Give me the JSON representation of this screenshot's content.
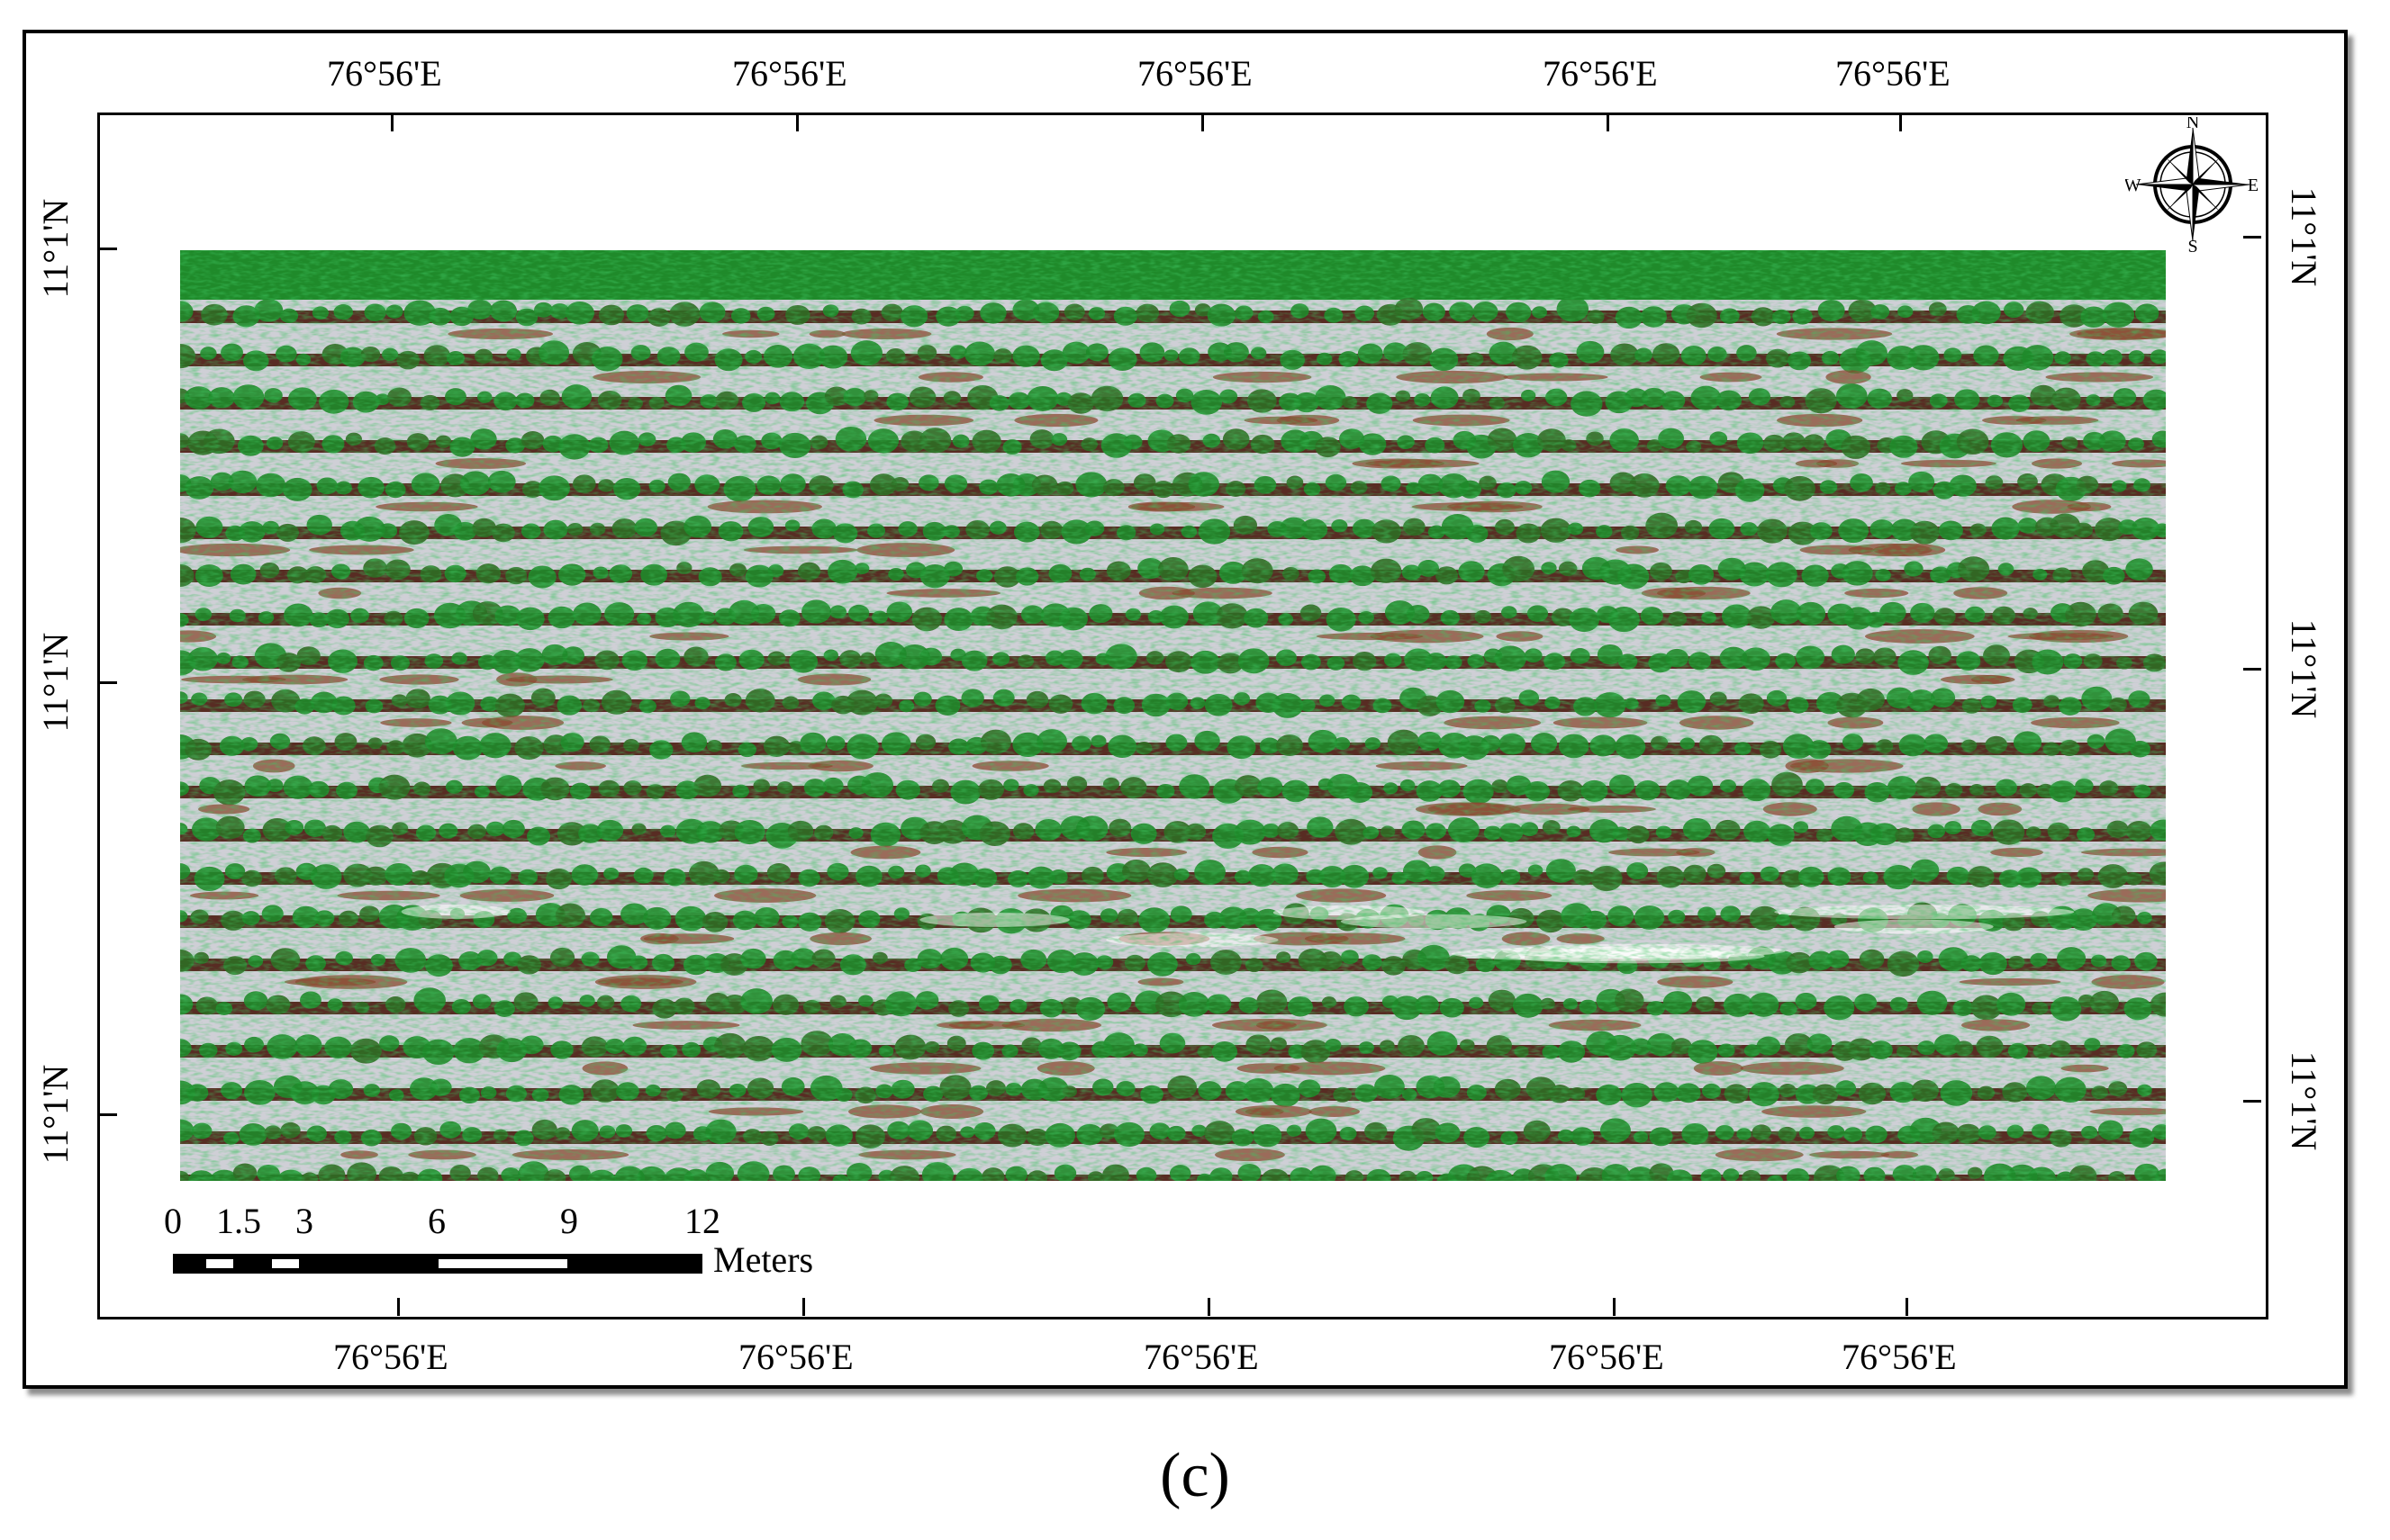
{
  "map": {
    "top_labels": [
      "76°56'E",
      "76°56'E",
      "76°56'E",
      "76°56'E",
      "76°56'E"
    ],
    "bottom_labels": [
      "76°56'E",
      "76°56'E",
      "76°56'E",
      "76°56'E",
      "76°56'E"
    ],
    "left_labels": [
      "11°1'N",
      "11°1'N",
      "11°1'N"
    ],
    "right_labels": [
      "11°1'N",
      "11°1'N",
      "11°1'N"
    ],
    "north_arrow": {
      "icon": "compass-rose-icon",
      "n": "N",
      "s": "S",
      "e": "E",
      "w": "W"
    },
    "scale_bar": {
      "ticks": [
        "0",
        "1.5",
        "3",
        "6",
        "9",
        "12"
      ],
      "unit": "Meters"
    },
    "imagery": {
      "description_icon": "crop-rows-aerial-imagery",
      "colors": {
        "vegetation": "#1f8a2a",
        "soil": "#4a1a10",
        "mulch": "#cfcfd6",
        "dry_patch": "#8a4a30"
      }
    }
  },
  "caption": "(c)"
}
